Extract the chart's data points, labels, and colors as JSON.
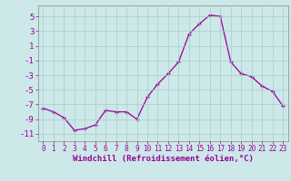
{
  "x": [
    0,
    1,
    2,
    3,
    4,
    5,
    6,
    7,
    8,
    9,
    10,
    11,
    12,
    13,
    14,
    15,
    16,
    17,
    18,
    19,
    20,
    21,
    22,
    23
  ],
  "y": [
    -7.5,
    -8.0,
    -8.8,
    -10.5,
    -10.3,
    -9.8,
    -7.8,
    -8.0,
    -8.0,
    -9.0,
    -6.0,
    -4.2,
    -2.8,
    -1.2,
    2.6,
    4.0,
    5.2,
    5.0,
    -1.2,
    -2.8,
    -3.2,
    -4.5,
    -5.2,
    -7.2
  ],
  "line_color": "#990099",
  "marker": "+",
  "markersize": 3.5,
  "linewidth": 0.9,
  "bg_color": "#cce8e8",
  "grid_color": "#aacccc",
  "xlabel": "Windchill (Refroidissement éolien,°C)",
  "xlim": [
    -0.5,
    23.5
  ],
  "ylim": [
    -12.0,
    6.5
  ],
  "yticks": [
    -11,
    -9,
    -7,
    -5,
    -3,
    -1,
    1,
    3,
    5
  ],
  "xticks": [
    0,
    1,
    2,
    3,
    4,
    5,
    6,
    7,
    8,
    9,
    10,
    11,
    12,
    13,
    14,
    15,
    16,
    17,
    18,
    19,
    20,
    21,
    22,
    23
  ],
  "xlabel_fontsize": 6.5,
  "ytick_fontsize": 6.5,
  "xtick_fontsize": 5.5,
  "label_color": "#990099"
}
